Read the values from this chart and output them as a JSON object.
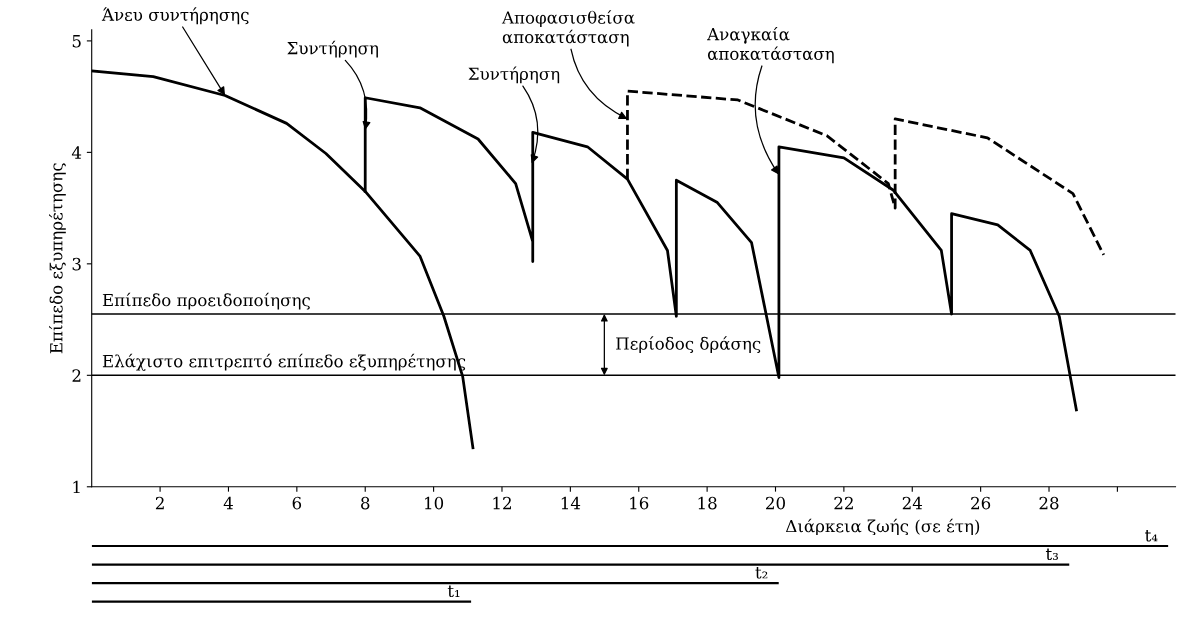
{
  "chart_data": [
    {
      "type": "line",
      "xlabel": "Διάρκεια ζωής (σε έτη)",
      "ylabel": "Επίπεδο εξυπηρέτησης",
      "xlim": [
        0,
        31.7
      ],
      "ylim": [
        1,
        5.1
      ],
      "xticks": [
        2,
        4,
        6,
        8,
        10,
        12,
        14,
        16,
        18,
        20,
        22,
        24,
        26,
        28,
        {
          "value": 30,
          "label": null
        }
      ],
      "yticks": [
        1,
        2,
        3,
        4,
        5
      ],
      "grid": false,
      "legend": false,
      "marker": "none",
      "series": [
        {
          "color": "#000000",
          "line_style": "solid",
          "x": [
            0,
            1.8,
            3.9,
            5.7,
            6.85,
            8.0,
            9.6,
            10.3,
            10.85,
            11.15
          ],
          "values": [
            4.73,
            4.68,
            4.51,
            4.26,
            3.99,
            3.65,
            3.07,
            2.53,
            1.99,
            1.35
          ]
        },
        {
          "color": "#000000",
          "line_style": "solid",
          "x": [
            8.0,
            8.0,
            9.6,
            11.3,
            12.4,
            12.9,
            12.9,
            12.9,
            14.5,
            15.67,
            16.84,
            17.1,
            17.1,
            18.3,
            19.3,
            20.1,
            20.1,
            22.0,
            23.45,
            24.85,
            25.15,
            25.15,
            26.5,
            27.45,
            28.3,
            28.8
          ],
          "values": [
            3.65,
            4.49,
            4.4,
            4.12,
            3.72,
            3.2,
            3.02,
            4.18,
            4.05,
            3.76,
            3.12,
            2.53,
            3.75,
            3.55,
            3.19,
            1.98,
            4.05,
            3.95,
            3.66,
            3.12,
            2.55,
            3.45,
            3.35,
            3.12,
            2.53,
            1.69
          ]
        },
        {
          "color": "#000000",
          "line_style": "dashed",
          "x": [
            15.67,
            15.67,
            18.9,
            21.5,
            23.3,
            23.5,
            23.5,
            26.2,
            28.7,
            29.6
          ],
          "values": [
            3.76,
            4.55,
            4.47,
            4.15,
            3.72,
            3.5,
            4.3,
            4.13,
            3.63,
            3.08
          ]
        }
      ],
      "ref_lines": [
        {
          "axis": "y",
          "value": 2.55,
          "label": "Επίπεδο προειδοποίησης",
          "color": "#000000"
        },
        {
          "axis": "y",
          "value": 2.0,
          "label": "Ελάχιστο επιτρεπτό επίπεδο εξυπηρέτησης",
          "color": "#000000"
        }
      ],
      "annotations": [
        {
          "text": "Άνευ συντήρησης",
          "x": 3.9,
          "y": 4.51
        },
        {
          "text": "Συντήρηση",
          "x": 8.0,
          "y": 4.2
        },
        {
          "text": "Συντήρηση",
          "x": 12.87,
          "y": 3.9
        },
        {
          "text": "Αποφασισθείσα\nαποκατάσταση",
          "x": 15.67,
          "y": 4.3
        },
        {
          "text": "Αναγκαία\nαποκατάσταση",
          "x": 20.1,
          "y": 3.8
        },
        "Περίοδος δράσης"
      ]
    },
    {
      "type": "bar",
      "orientation": "horizontal",
      "categories": [
        null,
        null,
        null,
        null
      ],
      "values": [
        31.5,
        28.6,
        20.1,
        11.1
      ],
      "xlim": [
        0,
        31.5
      ],
      "xticks": [
        2,
        4,
        6,
        8,
        10,
        12,
        14,
        16,
        18,
        20,
        22,
        24,
        26,
        28
      ],
      "tick_labels": false,
      "value_labels": [
        "t₄",
        "t₃",
        "t₂",
        "t₁"
      ],
      "color": "#000000"
    }
  ]
}
